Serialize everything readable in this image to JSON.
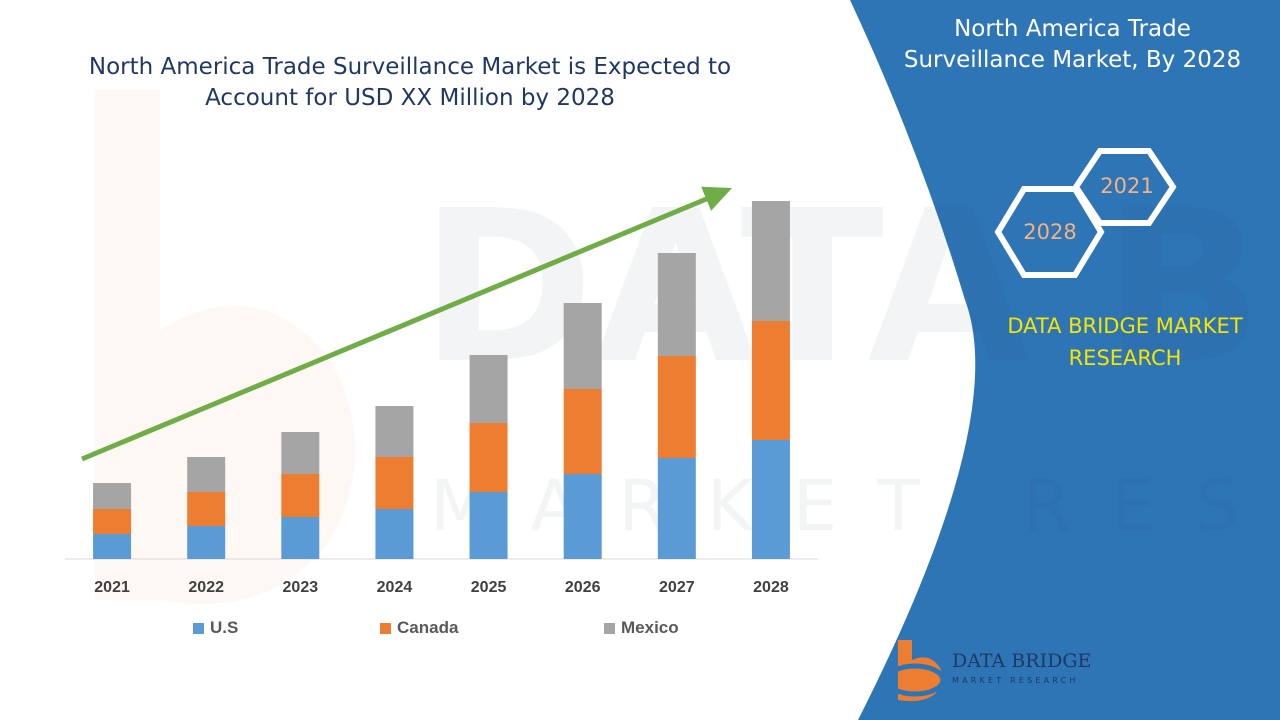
{
  "chart_data": {
    "type": "bar",
    "stacked": true,
    "title": "North America Trade Surveillance Market is Expected to Account for USD XX Million by 2028",
    "categories": [
      "2021",
      "2022",
      "2023",
      "2024",
      "2025",
      "2026",
      "2027",
      "2028"
    ],
    "series": [
      {
        "name": "U.S",
        "color": "#5b9bd5",
        "values": [
          25,
          33,
          42,
          50,
          67,
          85,
          101,
          119
        ]
      },
      {
        "name": "Canada",
        "color": "#ed7d31",
        "values": [
          25,
          34,
          43,
          52,
          69,
          85,
          102,
          119
        ]
      },
      {
        "name": "Mexico",
        "color": "#a5a5a5",
        "values": [
          26,
          35,
          42,
          51,
          68,
          86,
          103,
          120
        ]
      }
    ],
    "legend_position": "bottom",
    "grid": false,
    "trend_arrow_color": "#70ad47"
  },
  "side_panel": {
    "title": "North America Trade Surveillance Market, By 2028",
    "hex_front": "2028",
    "hex_back": "2021",
    "brand": "DATA BRIDGE MARKET RESEARCH",
    "background": "#2e75b6"
  },
  "logo": {
    "name": "DATA BRIDGE",
    "tagline": "MARKET RESEARCH"
  }
}
